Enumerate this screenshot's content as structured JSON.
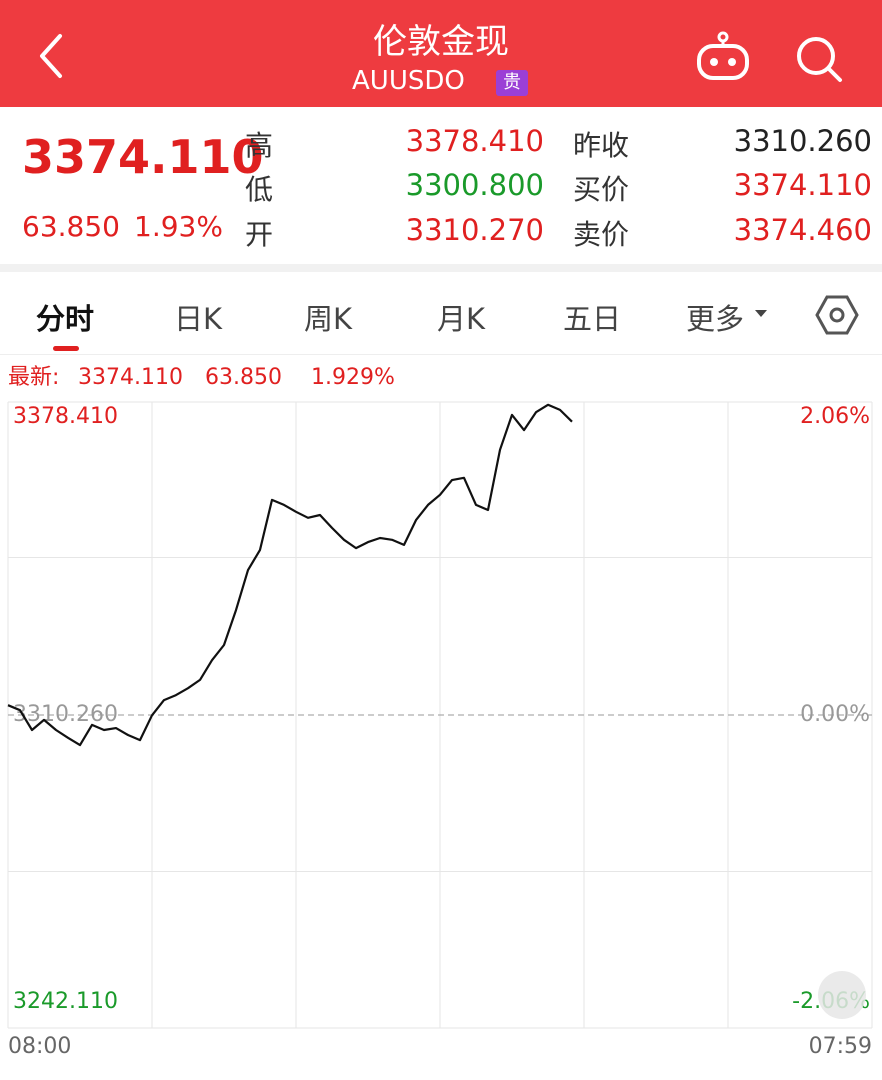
{
  "header": {
    "title": "伦敦金现",
    "symbol": "AUUSDO",
    "badge": "贵"
  },
  "quote": {
    "price": "3374.110",
    "change": "63.850",
    "change_pct": "1.93%",
    "left_fields": [
      {
        "label": "高",
        "value": "3378.410"
      },
      {
        "label": "低",
        "value": "3300.800"
      },
      {
        "label": "开",
        "value": "3310.270"
      }
    ],
    "right_fields": [
      {
        "label": "昨收",
        "value": "3310.260"
      },
      {
        "label": "买价",
        "value": "3374.110"
      },
      {
        "label": "卖价",
        "value": "3374.460"
      }
    ]
  },
  "tabs": [
    "分时",
    "日K",
    "周K",
    "月K",
    "五日",
    "更多"
  ],
  "info": {
    "label": "最新:",
    "price": "3374.110",
    "change": "63.850",
    "change_pct": "1.929%"
  },
  "chart_data": {
    "type": "line",
    "x_labels": [
      "08:00",
      "07:59"
    ],
    "color": "#111111",
    "values": [
      3312.4,
      3311.3,
      3307.0,
      3309.2,
      3307.0,
      3305.3,
      3303.7,
      3308.1,
      3307.0,
      3307.4,
      3305.9,
      3304.8,
      3310.2,
      3313.5,
      3314.6,
      3316.1,
      3317.9,
      3322.2,
      3325.5,
      3333.1,
      3341.8,
      3346.2,
      3357.1,
      3356.0,
      3354.5,
      3353.2,
      3353.8,
      3351.0,
      3348.4,
      3346.6,
      3347.9,
      3348.8,
      3348.4,
      3347.3,
      3352.7,
      3356.0,
      3358.2,
      3361.4,
      3361.9,
      3356.0,
      3354.9,
      3368.0,
      3375.6,
      3372.3,
      3376.2,
      3377.8,
      3376.7,
      3374.11,
      null,
      null,
      null,
      null,
      null,
      null,
      null,
      null,
      null,
      null,
      null,
      null,
      null,
      null,
      null,
      null,
      null,
      null,
      null,
      null,
      null,
      null,
      null,
      null,
      null
    ],
    "ylim": [
      3242.11,
      3378.41
    ],
    "yticks": [
      {
        "value": 3378.41,
        "label": "3378.410"
      },
      {
        "value": 3310.26,
        "label": "3310.260"
      },
      {
        "value": 3242.11,
        "label": "3242.110"
      }
    ],
    "y2lim": [
      -2.06,
      2.06
    ],
    "y2ticks": [
      {
        "value": 2.06,
        "label": "2.06%"
      },
      {
        "value": 0,
        "label": "0.00%"
      },
      {
        "value": -2.06,
        "label": "-2.06%"
      }
    ]
  }
}
